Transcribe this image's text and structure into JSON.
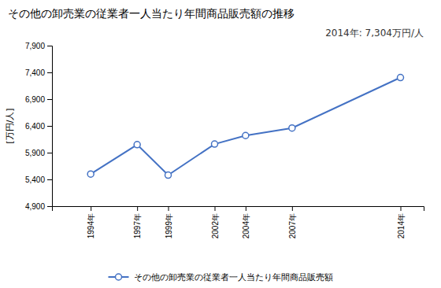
{
  "chart_data": {
    "type": "line",
    "title": "その他の卸売業の従業者一人当たり年間商品販売額の推移",
    "y_label": "[万円/人]",
    "annotation": "2014年: 7,304万円/人",
    "x": [
      1994,
      1997,
      1999,
      2002,
      2004,
      2007,
      2014
    ],
    "xlim": [
      1991.5,
      2015.5
    ],
    "xticks": [
      {
        "value": 1994,
        "label": "1994年"
      },
      {
        "value": 1997,
        "label": "1997年"
      },
      {
        "value": 1999,
        "label": "1999年"
      },
      {
        "value": 2002,
        "label": "2002年"
      },
      {
        "value": 2004,
        "label": "2004年"
      },
      {
        "value": 2007,
        "label": "2007年"
      },
      {
        "value": 2014,
        "label": "2014年"
      }
    ],
    "ylim": [
      4900,
      7900
    ],
    "yticks": [
      {
        "value": 4900,
        "label": "4,900"
      },
      {
        "value": 5400,
        "label": "5,400"
      },
      {
        "value": 5900,
        "label": "5,900"
      },
      {
        "value": 6400,
        "label": "6,400"
      },
      {
        "value": 6900,
        "label": "6,900"
      },
      {
        "value": 7400,
        "label": "7,400"
      },
      {
        "value": 7900,
        "label": "7,900"
      }
    ],
    "series": [
      {
        "name": "その他の卸売業の従業者一人当たり年間商品販売額",
        "color": "#4472C4",
        "marker": "circle",
        "values": [
          5500,
          6050,
          5480,
          6060,
          6220,
          6360,
          7304
        ]
      }
    ],
    "grid": false,
    "legend": "bottom"
  }
}
